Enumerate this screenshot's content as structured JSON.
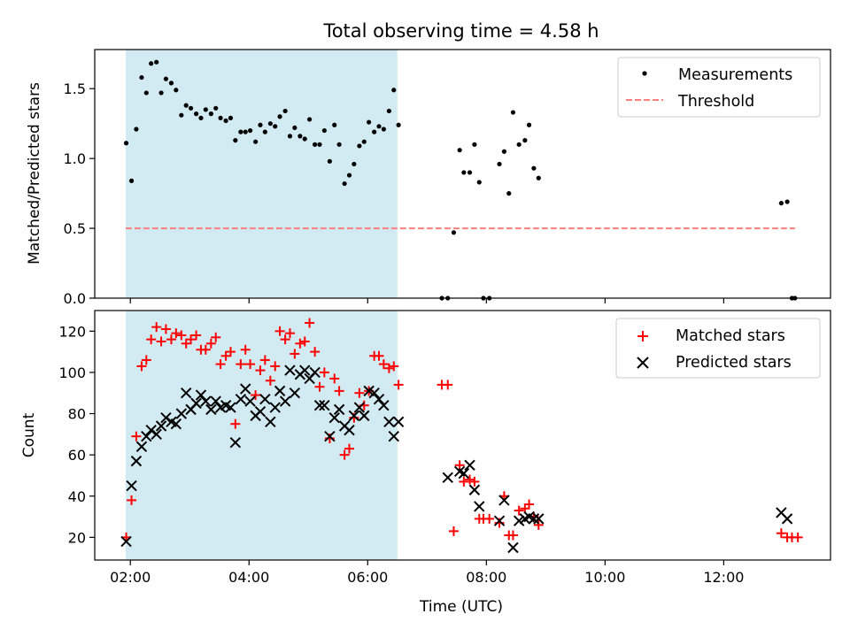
{
  "figure": {
    "title": "Total observing time = 4.58 h",
    "xlabel": "Time (UTC)",
    "x_tick_labels": [
      "02:00",
      "04:00",
      "06:00",
      "08:00",
      "10:00",
      "12:00"
    ]
  },
  "colors": {
    "measurements": "#000000",
    "threshold": "#ff7f7f",
    "matched": "#ff0000",
    "predicted": "#000000",
    "span": "#add8e6"
  },
  "chart_data": [
    {
      "type": "scatter",
      "ylabel": "Matched/Predicted stars",
      "x_tick_values": [
        2,
        4,
        6,
        8,
        10,
        12
      ],
      "y_tick_values": [
        0.0,
        0.5,
        1.0,
        1.5
      ],
      "y_tick_labels": [
        "0.0",
        "0.5",
        "1.0",
        "1.5"
      ],
      "xlim": [
        1.4,
        13.8
      ],
      "ylim": [
        0.0,
        1.78
      ],
      "grid": false,
      "legend": {
        "position": "upper right",
        "entries": [
          "Measurements",
          "Threshold"
        ]
      },
      "highlight_span": [
        1.92,
        6.5
      ],
      "threshold": {
        "name": "Threshold",
        "y": 0.5,
        "x_range": [
          1.92,
          13.2
        ]
      },
      "series": [
        {
          "name": "Measurements",
          "marker": "dot",
          "points": [
            [
              1.93,
              1.11
            ],
            [
              2.02,
              0.84
            ],
            [
              2.1,
              1.21
            ],
            [
              2.19,
              1.58
            ],
            [
              2.27,
              1.47
            ],
            [
              2.35,
              1.68
            ],
            [
              2.44,
              1.69
            ],
            [
              2.52,
              1.47
            ],
            [
              2.6,
              1.57
            ],
            [
              2.69,
              1.54
            ],
            [
              2.77,
              1.49
            ],
            [
              2.86,
              1.31
            ],
            [
              2.94,
              1.38
            ],
            [
              3.02,
              1.36
            ],
            [
              3.11,
              1.32
            ],
            [
              3.19,
              1.29
            ],
            [
              3.27,
              1.35
            ],
            [
              3.36,
              1.32
            ],
            [
              3.44,
              1.36
            ],
            [
              3.52,
              1.29
            ],
            [
              3.61,
              1.27
            ],
            [
              3.69,
              1.29
            ],
            [
              3.77,
              1.13
            ],
            [
              3.86,
              1.19
            ],
            [
              3.94,
              1.19
            ],
            [
              4.02,
              1.2
            ],
            [
              4.11,
              1.12
            ],
            [
              4.19,
              1.24
            ],
            [
              4.27,
              1.19
            ],
            [
              4.36,
              1.25
            ],
            [
              4.44,
              1.23
            ],
            [
              4.52,
              1.3
            ],
            [
              4.61,
              1.34
            ],
            [
              4.69,
              1.16
            ],
            [
              4.77,
              1.22
            ],
            [
              4.86,
              1.16
            ],
            [
              4.94,
              1.14
            ],
            [
              5.02,
              1.28
            ],
            [
              5.11,
              1.1
            ],
            [
              5.19,
              1.1
            ],
            [
              5.27,
              1.2
            ],
            [
              5.36,
              0.98
            ],
            [
              5.44,
              1.24
            ],
            [
              5.52,
              1.1
            ],
            [
              5.61,
              0.82
            ],
            [
              5.69,
              0.88
            ],
            [
              5.77,
              0.96
            ],
            [
              5.86,
              1.09
            ],
            [
              5.94,
              1.12
            ],
            [
              6.02,
              1.26
            ],
            [
              6.11,
              1.19
            ],
            [
              6.19,
              1.23
            ],
            [
              6.27,
              1.21
            ],
            [
              6.36,
              1.34
            ],
            [
              6.44,
              1.49
            ],
            [
              6.52,
              1.24
            ],
            [
              7.25,
              0.0
            ],
            [
              7.35,
              0.0
            ],
            [
              7.45,
              0.47
            ],
            [
              7.55,
              1.06
            ],
            [
              7.62,
              0.9
            ],
            [
              7.72,
              0.9
            ],
            [
              7.8,
              1.1
            ],
            [
              7.88,
              0.83
            ],
            [
              7.95,
              0.0
            ],
            [
              8.05,
              0.0
            ],
            [
              8.22,
              0.96
            ],
            [
              8.3,
              1.05
            ],
            [
              8.38,
              0.75
            ],
            [
              8.45,
              1.33
            ],
            [
              8.55,
              1.1
            ],
            [
              8.65,
              1.13
            ],
            [
              8.72,
              1.24
            ],
            [
              8.8,
              0.93
            ],
            [
              8.88,
              0.86
            ],
            [
              12.97,
              0.68
            ],
            [
              13.07,
              0.69
            ],
            [
              13.15,
              0.0
            ],
            [
              13.2,
              0.0
            ]
          ]
        }
      ]
    },
    {
      "type": "scatter",
      "ylabel": "Count",
      "x_tick_values": [
        2,
        4,
        6,
        8,
        10,
        12
      ],
      "y_tick_values": [
        20,
        40,
        60,
        80,
        100,
        120
      ],
      "y_tick_labels": [
        "20",
        "40",
        "60",
        "80",
        "100",
        "120"
      ],
      "xlim": [
        1.4,
        13.8
      ],
      "ylim": [
        9,
        130
      ],
      "grid": false,
      "legend": {
        "position": "upper right",
        "entries": [
          "Matched stars",
          "Predicted stars"
        ]
      },
      "highlight_span": [
        1.92,
        6.5
      ],
      "series": [
        {
          "name": "Matched stars",
          "marker": "plus",
          "points": [
            [
              1.93,
              20
            ],
            [
              2.02,
              38
            ],
            [
              2.1,
              69
            ],
            [
              2.19,
              103
            ],
            [
              2.27,
              106
            ],
            [
              2.35,
              116
            ],
            [
              2.44,
              122
            ],
            [
              2.52,
              115
            ],
            [
              2.6,
              121
            ],
            [
              2.69,
              116
            ],
            [
              2.77,
              119
            ],
            [
              2.86,
              118
            ],
            [
              2.94,
              114
            ],
            [
              3.02,
              116
            ],
            [
              3.11,
              118
            ],
            [
              3.19,
              111
            ],
            [
              3.27,
              111
            ],
            [
              3.36,
              114
            ],
            [
              3.44,
              117
            ],
            [
              3.52,
              104
            ],
            [
              3.61,
              108
            ],
            [
              3.69,
              110
            ],
            [
              3.77,
              75
            ],
            [
              3.86,
              104
            ],
            [
              3.94,
              111
            ],
            [
              4.02,
              104
            ],
            [
              4.11,
              89
            ],
            [
              4.19,
              101
            ],
            [
              4.27,
              106
            ],
            [
              4.36,
              96
            ],
            [
              4.44,
              103
            ],
            [
              4.52,
              120
            ],
            [
              4.61,
              116
            ],
            [
              4.69,
              119
            ],
            [
              4.77,
              109
            ],
            [
              4.86,
              114
            ],
            [
              4.94,
              115
            ],
            [
              5.02,
              124
            ],
            [
              5.11,
              110
            ],
            [
              5.19,
              93
            ],
            [
              5.27,
              100
            ],
            [
              5.36,
              68
            ],
            [
              5.44,
              97
            ],
            [
              5.52,
              91
            ],
            [
              5.61,
              60
            ],
            [
              5.69,
              63
            ],
            [
              5.77,
              78
            ],
            [
              5.86,
              90
            ],
            [
              5.94,
              84
            ],
            [
              6.02,
              91
            ],
            [
              6.11,
              108
            ],
            [
              6.19,
              108
            ],
            [
              6.27,
              104
            ],
            [
              6.36,
              102
            ],
            [
              6.44,
              103
            ],
            [
              6.52,
              94
            ],
            [
              7.25,
              94
            ],
            [
              7.35,
              94
            ],
            [
              7.45,
              23
            ],
            [
              7.55,
              55
            ],
            [
              7.62,
              47
            ],
            [
              7.72,
              48
            ],
            [
              7.8,
              47
            ],
            [
              7.88,
              29
            ],
            [
              7.95,
              29
            ],
            [
              8.05,
              29
            ],
            [
              8.22,
              27
            ],
            [
              8.3,
              40
            ],
            [
              8.38,
              21
            ],
            [
              8.45,
              21
            ],
            [
              8.55,
              33
            ],
            [
              8.65,
              34
            ],
            [
              8.72,
              36
            ],
            [
              8.8,
              30
            ],
            [
              8.88,
              26
            ],
            [
              12.97,
              22
            ],
            [
              13.07,
              20
            ],
            [
              13.15,
              20
            ],
            [
              13.25,
              20
            ]
          ]
        },
        {
          "name": "Predicted stars",
          "marker": "x",
          "points": [
            [
              1.93,
              18
            ],
            [
              2.02,
              45
            ],
            [
              2.1,
              57
            ],
            [
              2.19,
              64
            ],
            [
              2.27,
              69
            ],
            [
              2.35,
              72
            ],
            [
              2.44,
              70
            ],
            [
              2.52,
              74
            ],
            [
              2.6,
              78
            ],
            [
              2.69,
              76
            ],
            [
              2.77,
              75
            ],
            [
              2.86,
              80
            ],
            [
              2.94,
              90
            ],
            [
              3.02,
              82
            ],
            [
              3.11,
              85
            ],
            [
              3.19,
              89
            ],
            [
              3.27,
              86
            ],
            [
              3.36,
              82
            ],
            [
              3.44,
              86
            ],
            [
              3.52,
              83
            ],
            [
              3.61,
              84
            ],
            [
              3.69,
              83
            ],
            [
              3.77,
              66
            ],
            [
              3.86,
              87
            ],
            [
              3.94,
              92
            ],
            [
              4.02,
              86
            ],
            [
              4.11,
              79
            ],
            [
              4.19,
              81
            ],
            [
              4.27,
              87
            ],
            [
              4.36,
              76
            ],
            [
              4.44,
              83
            ],
            [
              4.52,
              91
            ],
            [
              4.61,
              86
            ],
            [
              4.69,
              101
            ],
            [
              4.77,
              90
            ],
            [
              4.86,
              99
            ],
            [
              4.94,
              101
            ],
            [
              5.02,
              97
            ],
            [
              5.11,
              100
            ],
            [
              5.19,
              84
            ],
            [
              5.27,
              84
            ],
            [
              5.36,
              69
            ],
            [
              5.44,
              78
            ],
            [
              5.52,
              82
            ],
            [
              5.61,
              74
            ],
            [
              5.69,
              72
            ],
            [
              5.77,
              79
            ],
            [
              5.86,
              83
            ],
            [
              5.94,
              79
            ],
            [
              6.02,
              91
            ],
            [
              6.11,
              90
            ],
            [
              6.19,
              87
            ],
            [
              6.27,
              84
            ],
            [
              6.36,
              76
            ],
            [
              6.44,
              69
            ],
            [
              6.52,
              76
            ],
            [
              7.35,
              49
            ],
            [
              7.55,
              52
            ],
            [
              7.62,
              51
            ],
            [
              7.72,
              55
            ],
            [
              7.8,
              43
            ],
            [
              7.88,
              35
            ],
            [
              8.22,
              28
            ],
            [
              8.3,
              38
            ],
            [
              8.45,
              15
            ],
            [
              8.55,
              28
            ],
            [
              8.65,
              29
            ],
            [
              8.72,
              30
            ],
            [
              8.8,
              29
            ],
            [
              8.88,
              29
            ],
            [
              12.97,
              32
            ],
            [
              13.07,
              29
            ]
          ]
        }
      ]
    }
  ]
}
